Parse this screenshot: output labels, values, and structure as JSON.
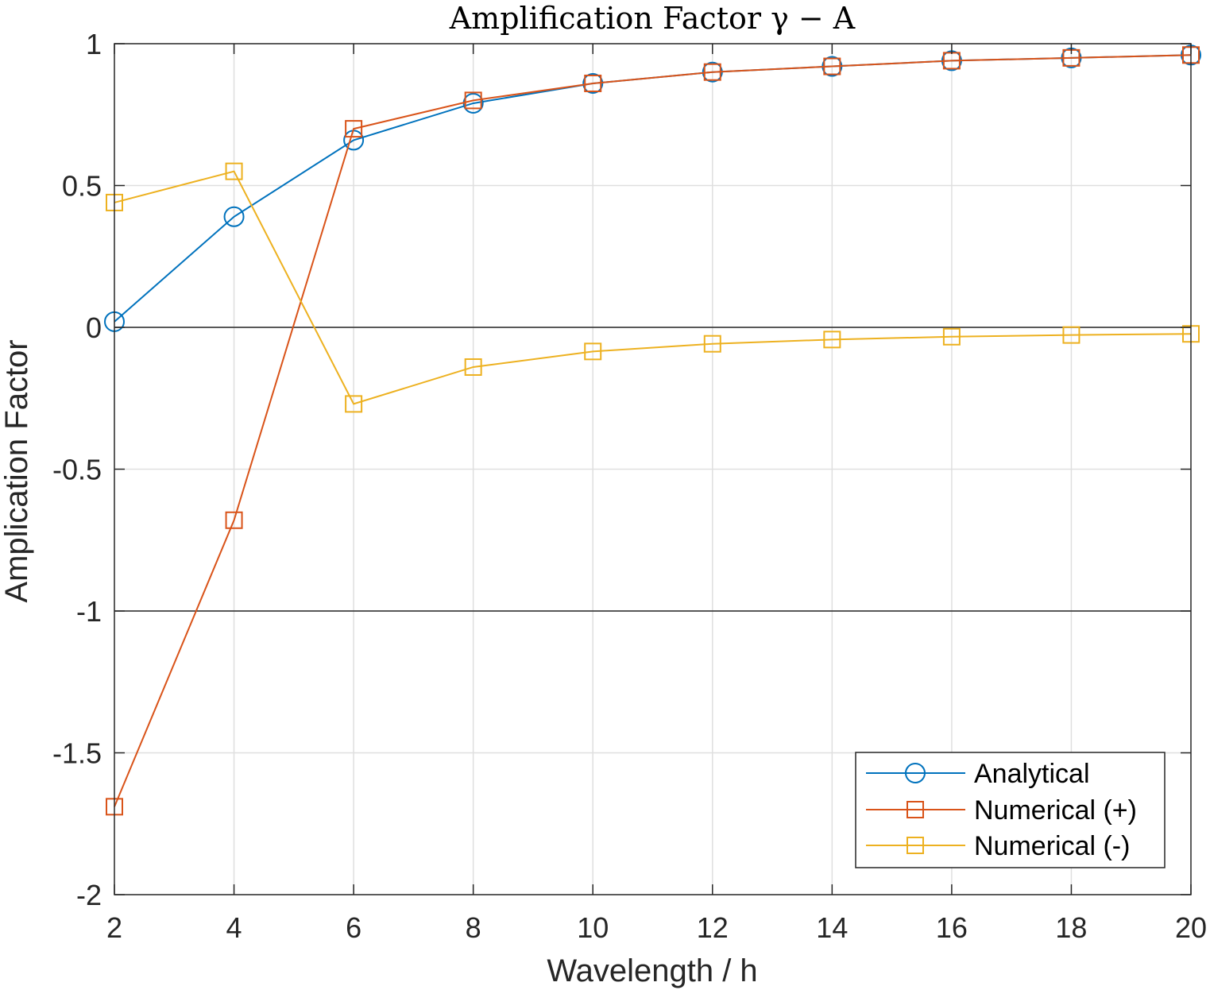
{
  "chart_data": {
    "type": "line",
    "title": "Amplification Factor γ − A",
    "xlabel": "Wavelength / h",
    "ylabel": "Amplication Factor",
    "xlim": [
      2,
      20
    ],
    "ylim": [
      -2,
      1
    ],
    "xticks": [
      2,
      4,
      6,
      8,
      10,
      12,
      14,
      16,
      18,
      20
    ],
    "xtick_labels": [
      "2",
      "4",
      "6",
      "8",
      "10",
      "12",
      "14",
      "16",
      "18",
      "20"
    ],
    "yticks": [
      1,
      0.5,
      0,
      -0.5,
      -1,
      -1.5,
      -2
    ],
    "ytick_labels": [
      "1",
      "0.5",
      "0",
      "-0.5",
      "-1",
      "-1.5",
      "-2"
    ],
    "reference_lines": [
      0,
      -1
    ],
    "grid": true,
    "legend_position": "bottom-right",
    "x": [
      2,
      4,
      6,
      8,
      10,
      12,
      14,
      16,
      18,
      20
    ],
    "series": [
      {
        "name": "Analytical",
        "marker": "circle",
        "color": "#0072BD",
        "values": [
          0.02,
          0.39,
          0.66,
          0.79,
          0.86,
          0.9,
          0.92,
          0.94,
          0.95,
          0.96
        ]
      },
      {
        "name": "Numerical (+)",
        "marker": "square",
        "color": "#D95319",
        "values": [
          -1.69,
          -0.68,
          0.7,
          0.8,
          0.86,
          0.9,
          0.92,
          0.94,
          0.95,
          0.96
        ]
      },
      {
        "name": "Numerical (-)",
        "marker": "square",
        "color": "#EDB120",
        "values": [
          0.44,
          0.55,
          -0.27,
          -0.14,
          -0.085,
          -0.058,
          -0.043,
          -0.033,
          -0.027,
          -0.023
        ]
      }
    ]
  }
}
